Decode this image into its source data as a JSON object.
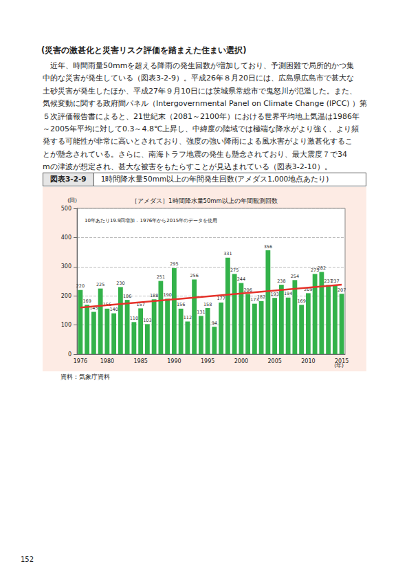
{
  "heading": "(災害の激甚化と災害リスク評価を踏まえた住まい選択)",
  "paragraph": [
    "　近年、時間雨量50mmを超える降雨の発生回数が増加しており、予測困難で局所的かつ集",
    "中的な災害が発生している（図表3-2-9）。平成26年８月20日には、広島県広島市で甚大な",
    "土砂災害が発生したほか、平成27年９月10日には茨城県常総市で鬼怒川が氾濫した。また、",
    "気候変動に関する政府間パネル（Intergovernmental Panel on Climate Change (IPCC) ）第",
    "５次評価報告書によると、21世紀末（2081～2100年）における世界平均地上気温は1986年",
    "～2005年平均に対して0.3～4.8℃上昇し、中緯度の陸域では極端な降水がより強く、より頻",
    "発する可能性が非常に高いとされており、強度の強い降雨による風水害がより激甚化するこ",
    "とが懸念されている。さらに、南海トラフ地震の発生も懸念されており、最大震度７で34",
    "mの津波が想定され、甚大な被害をもたらすことが見込まれている（図表3-2-10）。"
  ],
  "figure_number": "図表3-2-9",
  "figure_title": "1時間降水量50mm以上の年間発生回数(アメダス1,000地点あたり)",
  "chart_data": {
    "type": "bar",
    "title": "［アメダス］1時間降水量50mm以上の年間観測回数",
    "annotation": "10年あたり19.9回増加．1976年から2015年のデータを使用",
    "y_label": "(回)",
    "x_label": "(年)",
    "categories": [
      "1976",
      null,
      null,
      null,
      "1980",
      null,
      null,
      null,
      null,
      "1985",
      null,
      null,
      null,
      null,
      "1990",
      null,
      null,
      null,
      null,
      "1995",
      null,
      null,
      null,
      null,
      "2000",
      null,
      null,
      null,
      null,
      "2005",
      null,
      null,
      null,
      null,
      "2010",
      null,
      null,
      null,
      null,
      "2015"
    ],
    "series": [
      {
        "type": "bar",
        "color": "#33b24a",
        "data_labels": true,
        "values": [
          220,
          169,
          145,
          225,
          156,
          140,
          230,
          186,
          110,
          157,
          103,
          188,
          251,
          190,
          295,
          156,
          112,
          256,
          131,
          158,
          94,
          177,
          331,
          275,
          244,
          206,
          173,
          182,
          356,
          193,
          238,
          194,
          254,
          169,
          209,
          275,
          282,
          237,
          237,
          207
        ]
      },
      {
        "type": "line",
        "color": "#e5322a",
        "values": [
          160,
          null,
          null,
          null,
          null,
          null,
          null,
          null,
          null,
          null,
          null,
          null,
          null,
          null,
          null,
          null,
          null,
          null,
          null,
          null,
          null,
          null,
          null,
          null,
          null,
          null,
          null,
          null,
          null,
          null,
          null,
          null,
          null,
          null,
          null,
          null,
          null,
          null,
          null,
          238
        ]
      }
    ],
    "ylim": [
      0,
      500
    ],
    "yticks": [
      0,
      100,
      200,
      300,
      400,
      500
    ],
    "grid": true
  },
  "source": "資料：気象庁資料",
  "page_number": "152"
}
